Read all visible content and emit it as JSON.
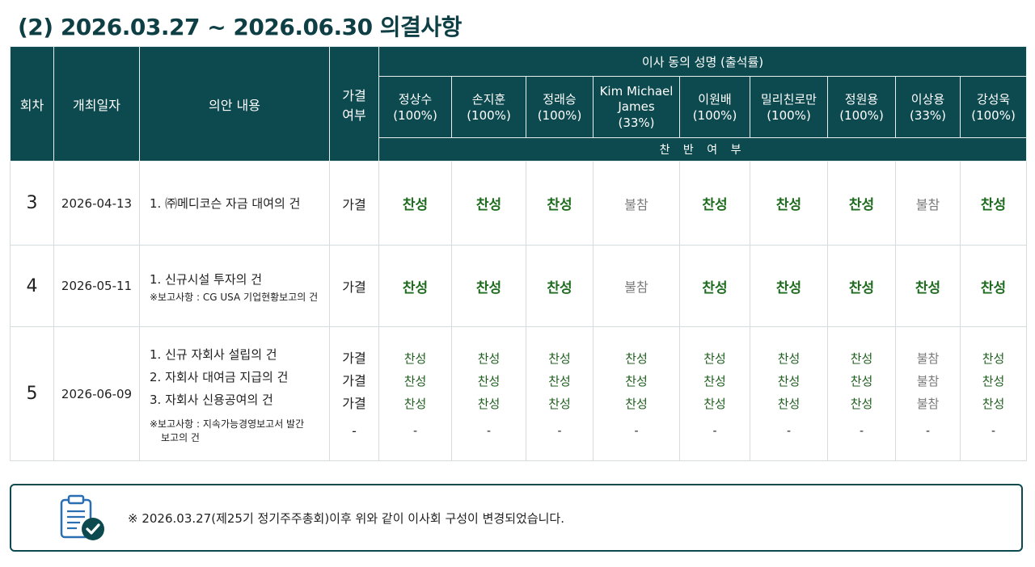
{
  "title": "(2) 2026.03.27 ~ 2026.06.30 의결사항",
  "header": {
    "round": "회차",
    "date": "개최일자",
    "agenda": "의안 내용",
    "result": [
      "가결",
      "여부"
    ],
    "directors_group": "이사 동의 성명 (출석률)",
    "vote_group": "찬 반 여 부"
  },
  "directors": [
    {
      "name": "정상수",
      "rate": "(100%)"
    },
    {
      "name": "손지훈",
      "rate": "(100%)"
    },
    {
      "name": "정래승",
      "rate": "(100%)"
    },
    {
      "name": "Kim Michael James",
      "rate": "(33%)"
    },
    {
      "name": "이원배",
      "rate": "(100%)"
    },
    {
      "name": "밀리친로만",
      "rate": "(100%)"
    },
    {
      "name": "정원용",
      "rate": "(100%)"
    },
    {
      "name": "이상용",
      "rate": "(33%)"
    },
    {
      "name": "강성욱",
      "rate": "(100%)"
    }
  ],
  "rows": [
    {
      "round": "3",
      "date": "2026-04-13",
      "agenda": [
        "1. ㈜메디코슨 자금 대여의 건"
      ],
      "result": "가결",
      "votes": [
        "찬성",
        "찬성",
        "찬성",
        "불참",
        "찬성",
        "찬성",
        "찬성",
        "불참",
        "찬성"
      ]
    },
    {
      "round": "4",
      "date": "2026-05-11",
      "agenda": [
        "1. 신규시설 투자의 건"
      ],
      "note": "※보고사항 : CG USA 기업현황보고의 건",
      "result": "가결",
      "votes": [
        "찬성",
        "찬성",
        "찬성",
        "불참",
        "찬성",
        "찬성",
        "찬성",
        "찬성",
        "찬성"
      ]
    },
    {
      "round": "5",
      "date": "2026-06-09",
      "agenda": [
        "1. 신규 자회사 설립의 건",
        "2. 자회사 대여금 지급의 건",
        "3. 자회사 신용공여의 건"
      ],
      "note_line1": "※보고사항 : 지속가능경영보고서 발간",
      "note_line2": "보고의 건",
      "results": [
        "가결",
        "가결",
        "가결",
        "-"
      ],
      "votes": [
        [
          "찬성",
          "찬성",
          "찬성",
          "-"
        ],
        [
          "찬성",
          "찬성",
          "찬성",
          "-"
        ],
        [
          "찬성",
          "찬성",
          "찬성",
          "-"
        ],
        [
          "찬성",
          "찬성",
          "찬성",
          "-"
        ],
        [
          "찬성",
          "찬성",
          "찬성",
          "-"
        ],
        [
          "찬성",
          "찬성",
          "찬성",
          "-"
        ],
        [
          "찬성",
          "찬성",
          "찬성",
          "-"
        ],
        [
          "불참",
          "불참",
          "불참",
          "-"
        ],
        [
          "찬성",
          "찬성",
          "찬성",
          "-"
        ]
      ]
    }
  ],
  "footer": {
    "icon": "clipboard-check-icon",
    "text": "※ 2026.03.27(제25기 정기주주총회)이후 위와 같이 이사회 구성이 변경되었습니다."
  },
  "colors": {
    "header_bg": "#0d4a4f",
    "yes": "#1f6b1f",
    "absent": "#7a7a7a"
  }
}
